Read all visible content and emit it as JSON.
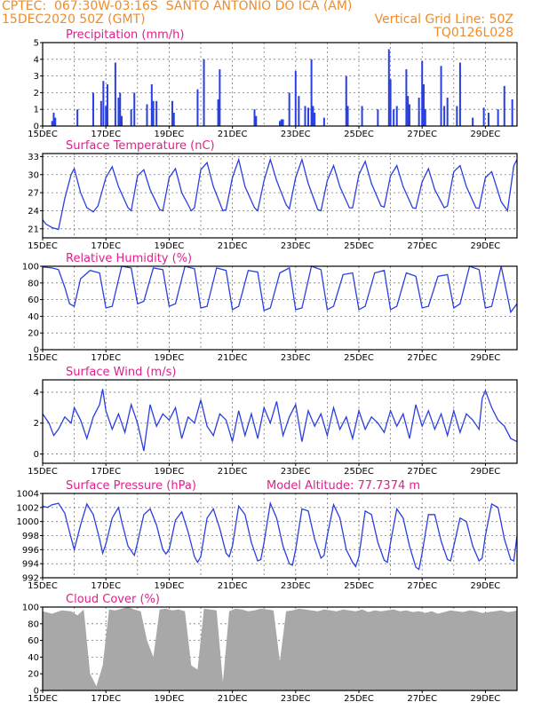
{
  "header": {
    "line1": "CPTEC:  067:30W-03:16S  SANTO ANTONIO DO ICA (AM)",
    "line2": "15DEC2020 50Z (GMT)",
    "grid_note": "Vertical Grid Line: 50Z",
    "code": "TQ0126L028"
  },
  "colors": {
    "header": "#f08c28",
    "title": "#e0208c",
    "line": "#2a3fe0",
    "bar": "#2a3fe0",
    "cloud": "#a8a8a8",
    "grid": "#7a7a7a"
  },
  "x_axis": {
    "labels": [
      "15DEC",
      "17DEC",
      "19DEC",
      "21DEC",
      "23DEC",
      "25DEC",
      "27DEC",
      "29DEC"
    ],
    "start_day": 15,
    "end_day": 30
  },
  "chart_data": [
    {
      "id": "precipitation",
      "type": "bar",
      "title": "Precipitation  (mm/h)",
      "ylim": [
        0,
        5
      ],
      "yticks": [
        0,
        1,
        2,
        3,
        4,
        5
      ],
      "x": [
        15.3,
        15.35,
        15.4,
        16.1,
        16.6,
        16.85,
        16.92,
        17.0,
        17.05,
        17.3,
        17.4,
        17.45,
        17.5,
        17.8,
        17.9,
        18.3,
        18.45,
        18.5,
        18.6,
        19.1,
        19.15,
        19.9,
        20.1,
        20.55,
        20.6,
        21.7,
        21.75,
        22.5,
        22.55,
        22.6,
        22.8,
        23.0,
        23.1,
        23.3,
        23.4,
        23.5,
        23.55,
        23.6,
        23.9,
        24.6,
        24.65,
        25.1,
        25.6,
        25.95,
        26.0,
        26.1,
        26.2,
        26.5,
        26.55,
        26.6,
        26.9,
        27.0,
        27.05,
        27.1,
        27.6,
        27.7,
        27.8,
        28.1,
        28.2,
        28.6,
        28.95,
        29.1,
        29.4,
        29.6,
        29.85
      ],
      "values": [
        0.3,
        0.8,
        0.5,
        1.0,
        2.0,
        1.5,
        2.7,
        1.2,
        2.5,
        3.8,
        1.7,
        2.0,
        0.6,
        1.0,
        2.0,
        1.3,
        2.5,
        1.5,
        1.5,
        1.5,
        0.8,
        2.2,
        4.0,
        1.6,
        3.4,
        1.0,
        0.6,
        0.3,
        0.4,
        0.4,
        2.0,
        3.3,
        1.8,
        1.2,
        1.1,
        4.0,
        1.2,
        0.8,
        0.5,
        3.0,
        1.2,
        1.2,
        1.0,
        4.6,
        2.8,
        1.0,
        1.2,
        3.4,
        1.8,
        1.3,
        1.7,
        3.9,
        2.5,
        1.0,
        3.6,
        1.2,
        1.7,
        1.2,
        3.8,
        0.5,
        1.1,
        0.8,
        1.0,
        2.4,
        1.6
      ]
    },
    {
      "id": "temperature",
      "type": "line",
      "title": "Surface Temperature (nC)",
      "ylim": [
        19.5,
        33.5
      ],
      "yticks": [
        21,
        24,
        27,
        30,
        33
      ],
      "x": [
        15.0,
        15.1,
        15.3,
        15.5,
        15.7,
        15.9,
        16.0,
        16.2,
        16.4,
        16.6,
        16.75,
        17.0,
        17.2,
        17.4,
        17.7,
        17.8,
        18.0,
        18.2,
        18.4,
        18.7,
        18.8,
        19.0,
        19.2,
        19.4,
        19.7,
        19.8,
        20.0,
        20.2,
        20.4,
        20.7,
        20.8,
        21.0,
        21.2,
        21.4,
        21.7,
        21.8,
        22.0,
        22.2,
        22.4,
        22.7,
        22.8,
        23.0,
        23.2,
        23.4,
        23.7,
        23.8,
        24.0,
        24.2,
        24.4,
        24.7,
        24.8,
        25.0,
        25.2,
        25.4,
        25.7,
        25.8,
        26.0,
        26.2,
        26.4,
        26.7,
        26.8,
        27.0,
        27.2,
        27.4,
        27.7,
        27.8,
        28.0,
        28.2,
        28.4,
        28.7,
        28.8,
        29.0,
        29.2,
        29.5,
        29.7,
        29.9,
        30.0
      ],
      "values": [
        22.5,
        21.8,
        21.2,
        20.9,
        26.0,
        30.0,
        31.0,
        27.0,
        24.5,
        23.8,
        24.8,
        29.5,
        31.3,
        28.0,
        24.5,
        24.0,
        29.8,
        30.8,
        27.5,
        24.2,
        24.0,
        29.5,
        31.0,
        27.0,
        24.0,
        24.5,
        30.8,
        32.0,
        28.0,
        24.0,
        24.2,
        29.5,
        32.5,
        28.0,
        24.5,
        24.0,
        29.0,
        32.5,
        29.0,
        25.0,
        24.3,
        29.5,
        32.5,
        28.5,
        24.2,
        24.0,
        29.0,
        31.5,
        28.0,
        24.5,
        24.5,
        30.0,
        32.2,
        28.5,
        24.8,
        24.6,
        29.8,
        31.5,
        28.0,
        24.5,
        24.4,
        28.8,
        31.0,
        27.5,
        24.5,
        24.8,
        30.5,
        31.5,
        28.0,
        24.5,
        24.4,
        29.5,
        30.5,
        25.5,
        24.0,
        31.5,
        32.5
      ]
    },
    {
      "id": "humidity",
      "type": "line",
      "title": "Relative Humidity (%)",
      "ylim": [
        0,
        100
      ],
      "yticks": [
        0,
        20,
        40,
        60,
        80,
        100
      ],
      "x": [
        15.0,
        15.3,
        15.5,
        15.7,
        15.85,
        16.0,
        16.2,
        16.5,
        16.8,
        17.0,
        17.2,
        17.5,
        17.8,
        18.0,
        18.2,
        18.5,
        18.8,
        19.0,
        19.2,
        19.5,
        19.8,
        20.0,
        20.2,
        20.5,
        20.8,
        21.0,
        21.2,
        21.5,
        21.8,
        22.0,
        22.2,
        22.5,
        22.8,
        23.0,
        23.2,
        23.5,
        23.8,
        24.0,
        24.2,
        24.5,
        24.8,
        25.0,
        25.2,
        25.5,
        25.8,
        26.0,
        26.2,
        26.5,
        26.8,
        27.0,
        27.2,
        27.5,
        27.8,
        28.0,
        28.2,
        28.5,
        28.8,
        29.0,
        29.2,
        29.5,
        29.8,
        30.0
      ],
      "values": [
        99,
        98,
        96,
        75,
        55,
        52,
        85,
        95,
        92,
        50,
        52,
        100,
        98,
        55,
        58,
        98,
        96,
        52,
        55,
        100,
        97,
        50,
        52,
        98,
        95,
        48,
        52,
        95,
        93,
        47,
        50,
        92,
        98,
        48,
        50,
        100,
        96,
        48,
        52,
        90,
        92,
        48,
        52,
        92,
        95,
        48,
        52,
        92,
        88,
        50,
        52,
        88,
        90,
        50,
        55,
        100,
        96,
        50,
        52,
        100,
        45,
        55
      ]
    },
    {
      "id": "wind",
      "type": "line",
      "title": "Surface Wind (m/s)",
      "ylim": [
        -0.6,
        4.8
      ],
      "yticks": [
        0,
        2,
        4
      ],
      "x": [
        15.0,
        15.2,
        15.35,
        15.5,
        15.7,
        15.9,
        16.0,
        16.2,
        16.4,
        16.6,
        16.8,
        16.9,
        17.0,
        17.2,
        17.4,
        17.6,
        17.8,
        18.0,
        18.2,
        18.4,
        18.6,
        18.8,
        19.0,
        19.2,
        19.4,
        19.6,
        19.8,
        20.0,
        20.2,
        20.4,
        20.6,
        20.8,
        21.0,
        21.2,
        21.4,
        21.6,
        21.8,
        22.0,
        22.2,
        22.4,
        22.6,
        22.8,
        23.0,
        23.2,
        23.4,
        23.6,
        23.8,
        24.0,
        24.2,
        24.4,
        24.6,
        24.8,
        25.0,
        25.2,
        25.4,
        25.6,
        25.8,
        26.0,
        26.2,
        26.4,
        26.6,
        26.8,
        27.0,
        27.2,
        27.4,
        27.6,
        27.8,
        28.0,
        28.2,
        28.4,
        28.6,
        28.8,
        28.9,
        29.0,
        29.2,
        29.4,
        29.6,
        29.8,
        30.0
      ],
      "values": [
        2.6,
        2.0,
        1.2,
        1.6,
        2.4,
        2.0,
        3.0,
        2.2,
        1.0,
        2.4,
        3.2,
        4.2,
        2.8,
        1.6,
        2.6,
        1.4,
        3.2,
        2.0,
        0.2,
        3.2,
        1.8,
        2.6,
        2.2,
        3.0,
        1.0,
        2.4,
        2.0,
        3.5,
        1.8,
        1.2,
        2.6,
        2.2,
        0.8,
        2.8,
        1.2,
        2.6,
        1.0,
        3.0,
        2.0,
        3.4,
        1.2,
        2.4,
        3.2,
        0.8,
        2.8,
        1.8,
        2.6,
        1.2,
        3.0,
        1.6,
        2.4,
        1.0,
        2.8,
        1.6,
        2.4,
        2.0,
        1.4,
        2.8,
        1.8,
        2.6,
        1.0,
        3.2,
        1.8,
        2.8,
        1.6,
        2.6,
        1.2,
        2.8,
        1.4,
        2.6,
        2.2,
        1.6,
        3.6,
        4.1,
        3.0,
        2.2,
        1.8,
        1.0,
        0.8
      ]
    },
    {
      "id": "pressure",
      "type": "line",
      "title": "Surface Pressure (hPa)",
      "annotation": "Model Altitude: 77.7374 m",
      "ylim": [
        992,
        1004
      ],
      "yticks": [
        992,
        994,
        996,
        998,
        1000,
        1002,
        1004
      ],
      "x": [
        15.0,
        15.15,
        15.3,
        15.5,
        15.7,
        15.85,
        16.0,
        16.2,
        16.4,
        16.6,
        16.8,
        16.9,
        17.0,
        17.2,
        17.4,
        17.5,
        17.7,
        17.9,
        18.0,
        18.2,
        18.4,
        18.6,
        18.8,
        18.9,
        19.0,
        19.2,
        19.4,
        19.6,
        19.8,
        19.9,
        20.0,
        20.2,
        20.4,
        20.6,
        20.8,
        20.9,
        21.0,
        21.2,
        21.4,
        21.6,
        21.8,
        21.9,
        22.0,
        22.2,
        22.4,
        22.6,
        22.8,
        22.9,
        23.0,
        23.2,
        23.4,
        23.6,
        23.8,
        23.9,
        24.0,
        24.2,
        24.4,
        24.6,
        24.8,
        24.9,
        25.0,
        25.2,
        25.4,
        25.6,
        25.8,
        25.9,
        26.0,
        26.2,
        26.4,
        26.6,
        26.8,
        26.9,
        27.0,
        27.2,
        27.4,
        27.6,
        27.8,
        27.9,
        28.0,
        28.2,
        28.4,
        28.6,
        28.8,
        28.9,
        29.0,
        29.2,
        29.4,
        29.6,
        29.8,
        29.9,
        30.0
      ],
      "values": [
        1002.2,
        1002.0,
        1002.4,
        1002.6,
        1001.2,
        998.5,
        996.0,
        999.5,
        1002.5,
        1001.0,
        997.5,
        995.5,
        996.8,
        1000.5,
        1002.0,
        1000.0,
        996.5,
        995.2,
        997.0,
        1001.0,
        1001.8,
        999.5,
        996.0,
        995.4,
        996.0,
        1000.2,
        1001.4,
        998.5,
        995.0,
        994.2,
        995.0,
        1000.5,
        1001.8,
        999.0,
        995.5,
        995.0,
        996.5,
        1002.2,
        1001.0,
        997.0,
        994.4,
        994.6,
        997.0,
        1002.6,
        1000.5,
        996.5,
        994.0,
        993.8,
        996.0,
        1001.8,
        1001.5,
        997.5,
        994.8,
        995.2,
        998.0,
        1002.4,
        1000.5,
        996.0,
        994.2,
        993.6,
        995.0,
        1001.5,
        1001.0,
        997.0,
        994.5,
        994.2,
        997.0,
        1001.8,
        1000.5,
        996.5,
        993.5,
        993.2,
        995.5,
        1001.0,
        1001.0,
        997.2,
        994.6,
        994.4,
        996.5,
        1000.5,
        1000.0,
        996.5,
        994.4,
        994.8,
        998.0,
        1002.5,
        1002.0,
        997.5,
        994.6,
        994.4,
        998.0
      ]
    },
    {
      "id": "cloud",
      "type": "area",
      "title": "Cloud Cover (%)",
      "ylim": [
        0,
        100
      ],
      "yticks": [
        0,
        20,
        40,
        60,
        80,
        100
      ],
      "x": [
        15.0,
        15.3,
        15.6,
        15.9,
        16.1,
        16.3,
        16.5,
        16.7,
        16.9,
        17.1,
        17.3,
        17.5,
        17.7,
        17.9,
        18.1,
        18.3,
        18.5,
        18.7,
        18.9,
        19.1,
        19.3,
        19.5,
        19.7,
        19.9,
        20.1,
        20.3,
        20.5,
        20.7,
        20.9,
        21.1,
        21.3,
        21.5,
        21.7,
        21.9,
        22.1,
        22.3,
        22.5,
        22.7,
        22.9,
        23.1,
        23.3,
        23.5,
        23.7,
        23.9,
        24.1,
        24.3,
        24.5,
        24.7,
        24.9,
        25.1,
        25.3,
        25.5,
        25.7,
        25.9,
        26.1,
        26.3,
        26.5,
        26.7,
        26.9,
        27.1,
        27.3,
        27.5,
        27.7,
        27.9,
        28.1,
        28.3,
        28.5,
        28.7,
        28.9,
        29.1,
        29.3,
        29.5,
        29.7,
        29.9,
        30.0
      ],
      "values": [
        95,
        92,
        96,
        95,
        90,
        97,
        20,
        5,
        30,
        97,
        96,
        98,
        100,
        97,
        95,
        60,
        40,
        97,
        98,
        96,
        97,
        95,
        30,
        25,
        98,
        97,
        96,
        10,
        95,
        98,
        97,
        95,
        96,
        98,
        97,
        96,
        35,
        95,
        96,
        98,
        97,
        96,
        95,
        97,
        96,
        95,
        97,
        96,
        95,
        97,
        94,
        96,
        95,
        96,
        97,
        95,
        96,
        94,
        95,
        93,
        95,
        92,
        94,
        96,
        95,
        94,
        96,
        95,
        93,
        94,
        95,
        96,
        94,
        95,
        96
      ]
    }
  ]
}
